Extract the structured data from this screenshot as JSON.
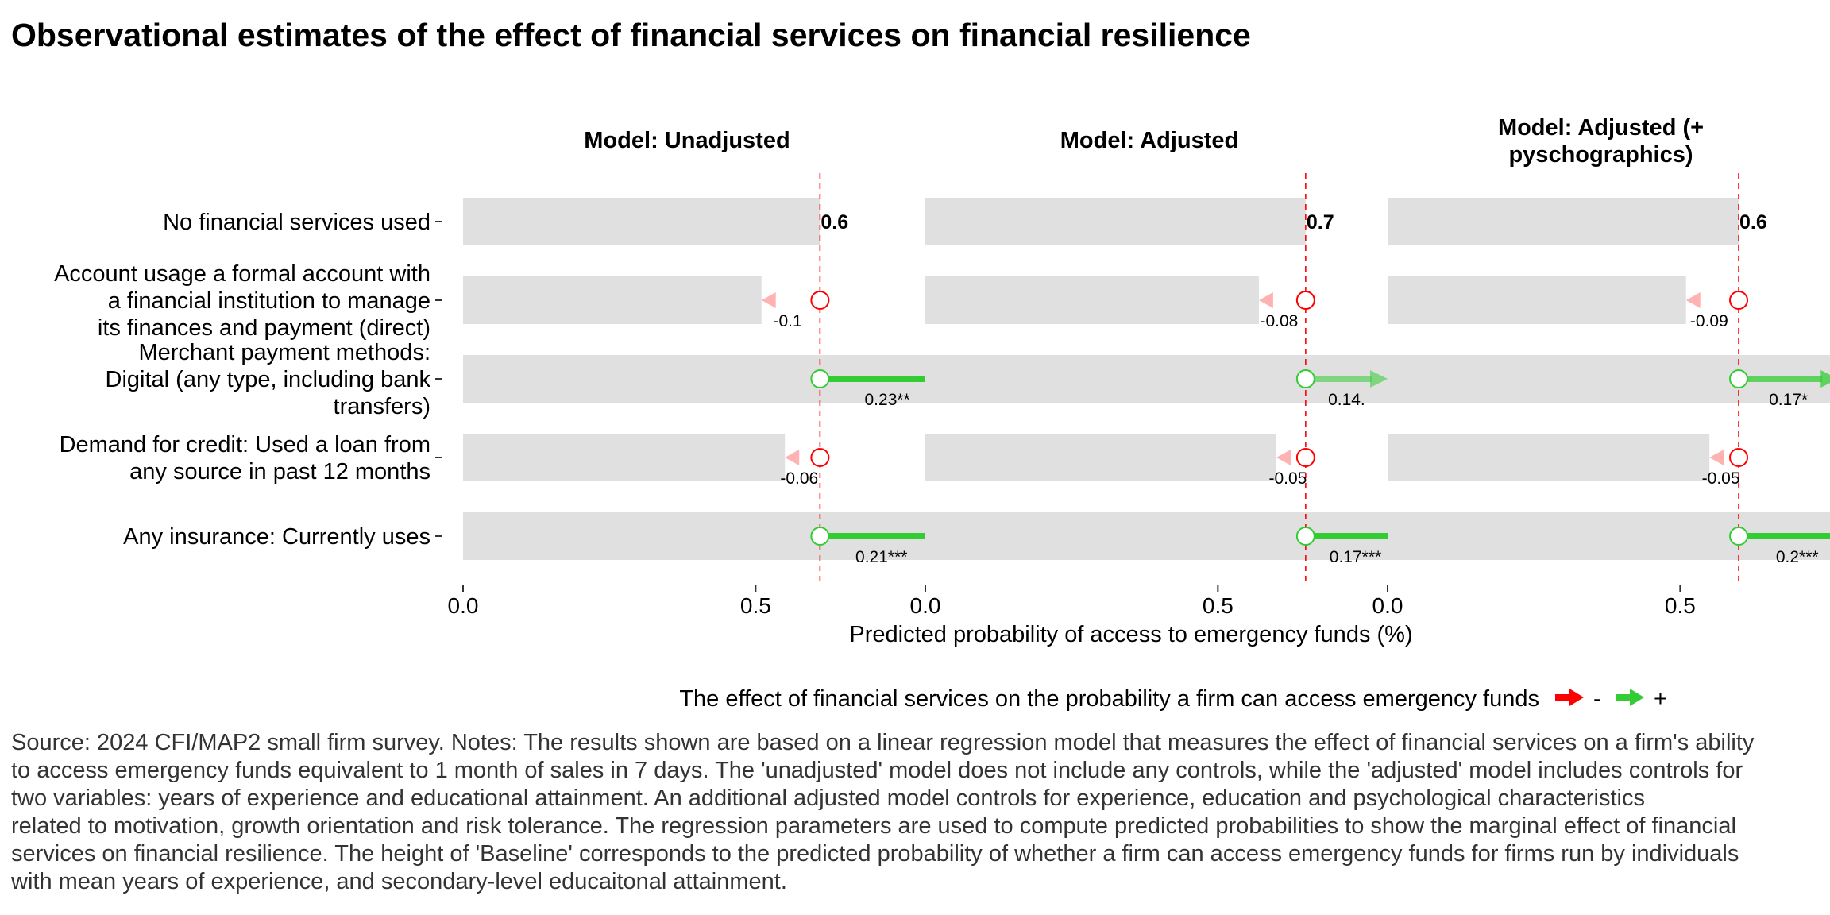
{
  "chart_data": {
    "type": "bar",
    "title": "Observational estimates of the effect of financial services on financial resilience",
    "categories": [
      "No financial services used",
      "Account usage a formal account with a financial institution to manage its finances and payment (direct)",
      "Merchant payment methods: Digital (any type, including bank transfers)",
      "Demand for credit: Used a loan from any source in past 12 months",
      "Any insurance: Currently uses"
    ],
    "category_label_lines": [
      [
        "No financial services used"
      ],
      [
        "Account usage a formal account with",
        "a financial institution to manage",
        "its finances and payment (direct)"
      ],
      [
        "Merchant payment methods:",
        "Digital (any type, including bank",
        "transfers)"
      ],
      [
        "Demand for credit: Used a loan from",
        "any source in past 12 months"
      ],
      [
        "Any insurance: Currently uses"
      ]
    ],
    "xlabel": "Predicted probability of access to emergency funds (%)",
    "xlim": [
      0,
      0.79
    ],
    "xticks": [
      0.0,
      0.5
    ],
    "xtick_labels": [
      "0.0",
      "0.5"
    ],
    "panels": [
      {
        "title_lines": [
          "Model: Unadjusted"
        ],
        "baseline": 0.61,
        "baseline_label": "0.6",
        "effects": [
          null,
          -0.1,
          0.23,
          -0.06,
          0.21
        ],
        "effect_labels": [
          "",
          "-0.1",
          "0.23**",
          "-0.06",
          "0.21***"
        ]
      },
      {
        "title_lines": [
          "Model: Adjusted"
        ],
        "baseline": 0.65,
        "baseline_label": "0.7",
        "effects": [
          null,
          -0.08,
          0.14,
          -0.05,
          0.17
        ],
        "effect_labels": [
          "",
          "-0.08",
          "0.14.",
          "-0.05",
          "0.17***"
        ]
      },
      {
        "title_lines": [
          "Model: Adjusted (+",
          "pyschographics)"
        ],
        "baseline": 0.6,
        "baseline_label": "0.6",
        "effects": [
          null,
          -0.09,
          0.17,
          -0.05,
          0.2
        ],
        "effect_labels": [
          "",
          "-0.09",
          "0.17*",
          "-0.05",
          "0.2***"
        ]
      }
    ],
    "legend": {
      "title": "The effect of financial services on the probability a firm can access emergency funds",
      "entries": [
        {
          "label": "-",
          "color": "#ff0000"
        },
        {
          "label": "+",
          "color": "#33cc33"
        }
      ],
      "placement": "bottom"
    },
    "colors": {
      "bar": "#e0e0e0",
      "negative": "#ff0000",
      "positive": "#33cc33",
      "baseline_line": "#ff0000"
    },
    "grid": false
  },
  "caption_lines": [
    "Source: 2024 CFI/MAP2 small firm survey. Notes: The results shown are based on a linear regression model that measures the effect of financial services on a firm's ability",
    "to access emergency funds equivalent to 1 month of sales in 7 days. The 'unadjusted' model does not include any controls, while the 'adjusted' model includes controls for",
    "two variables: years of experience and educational attainment. An additional adjusted model controls for experience, education and psychological characteristics",
    "related to motivation, growth orientation and risk tolerance. The regression parameters are used to compute predicted probabilities to show the marginal effect of financial",
    "services on financial resilience. The height of 'Baseline' corresponds to the predicted probability of whether a firm can access emergency funds for firms run by individuals",
    "with mean years of experience, and secondary-level educaitonal attainment."
  ]
}
